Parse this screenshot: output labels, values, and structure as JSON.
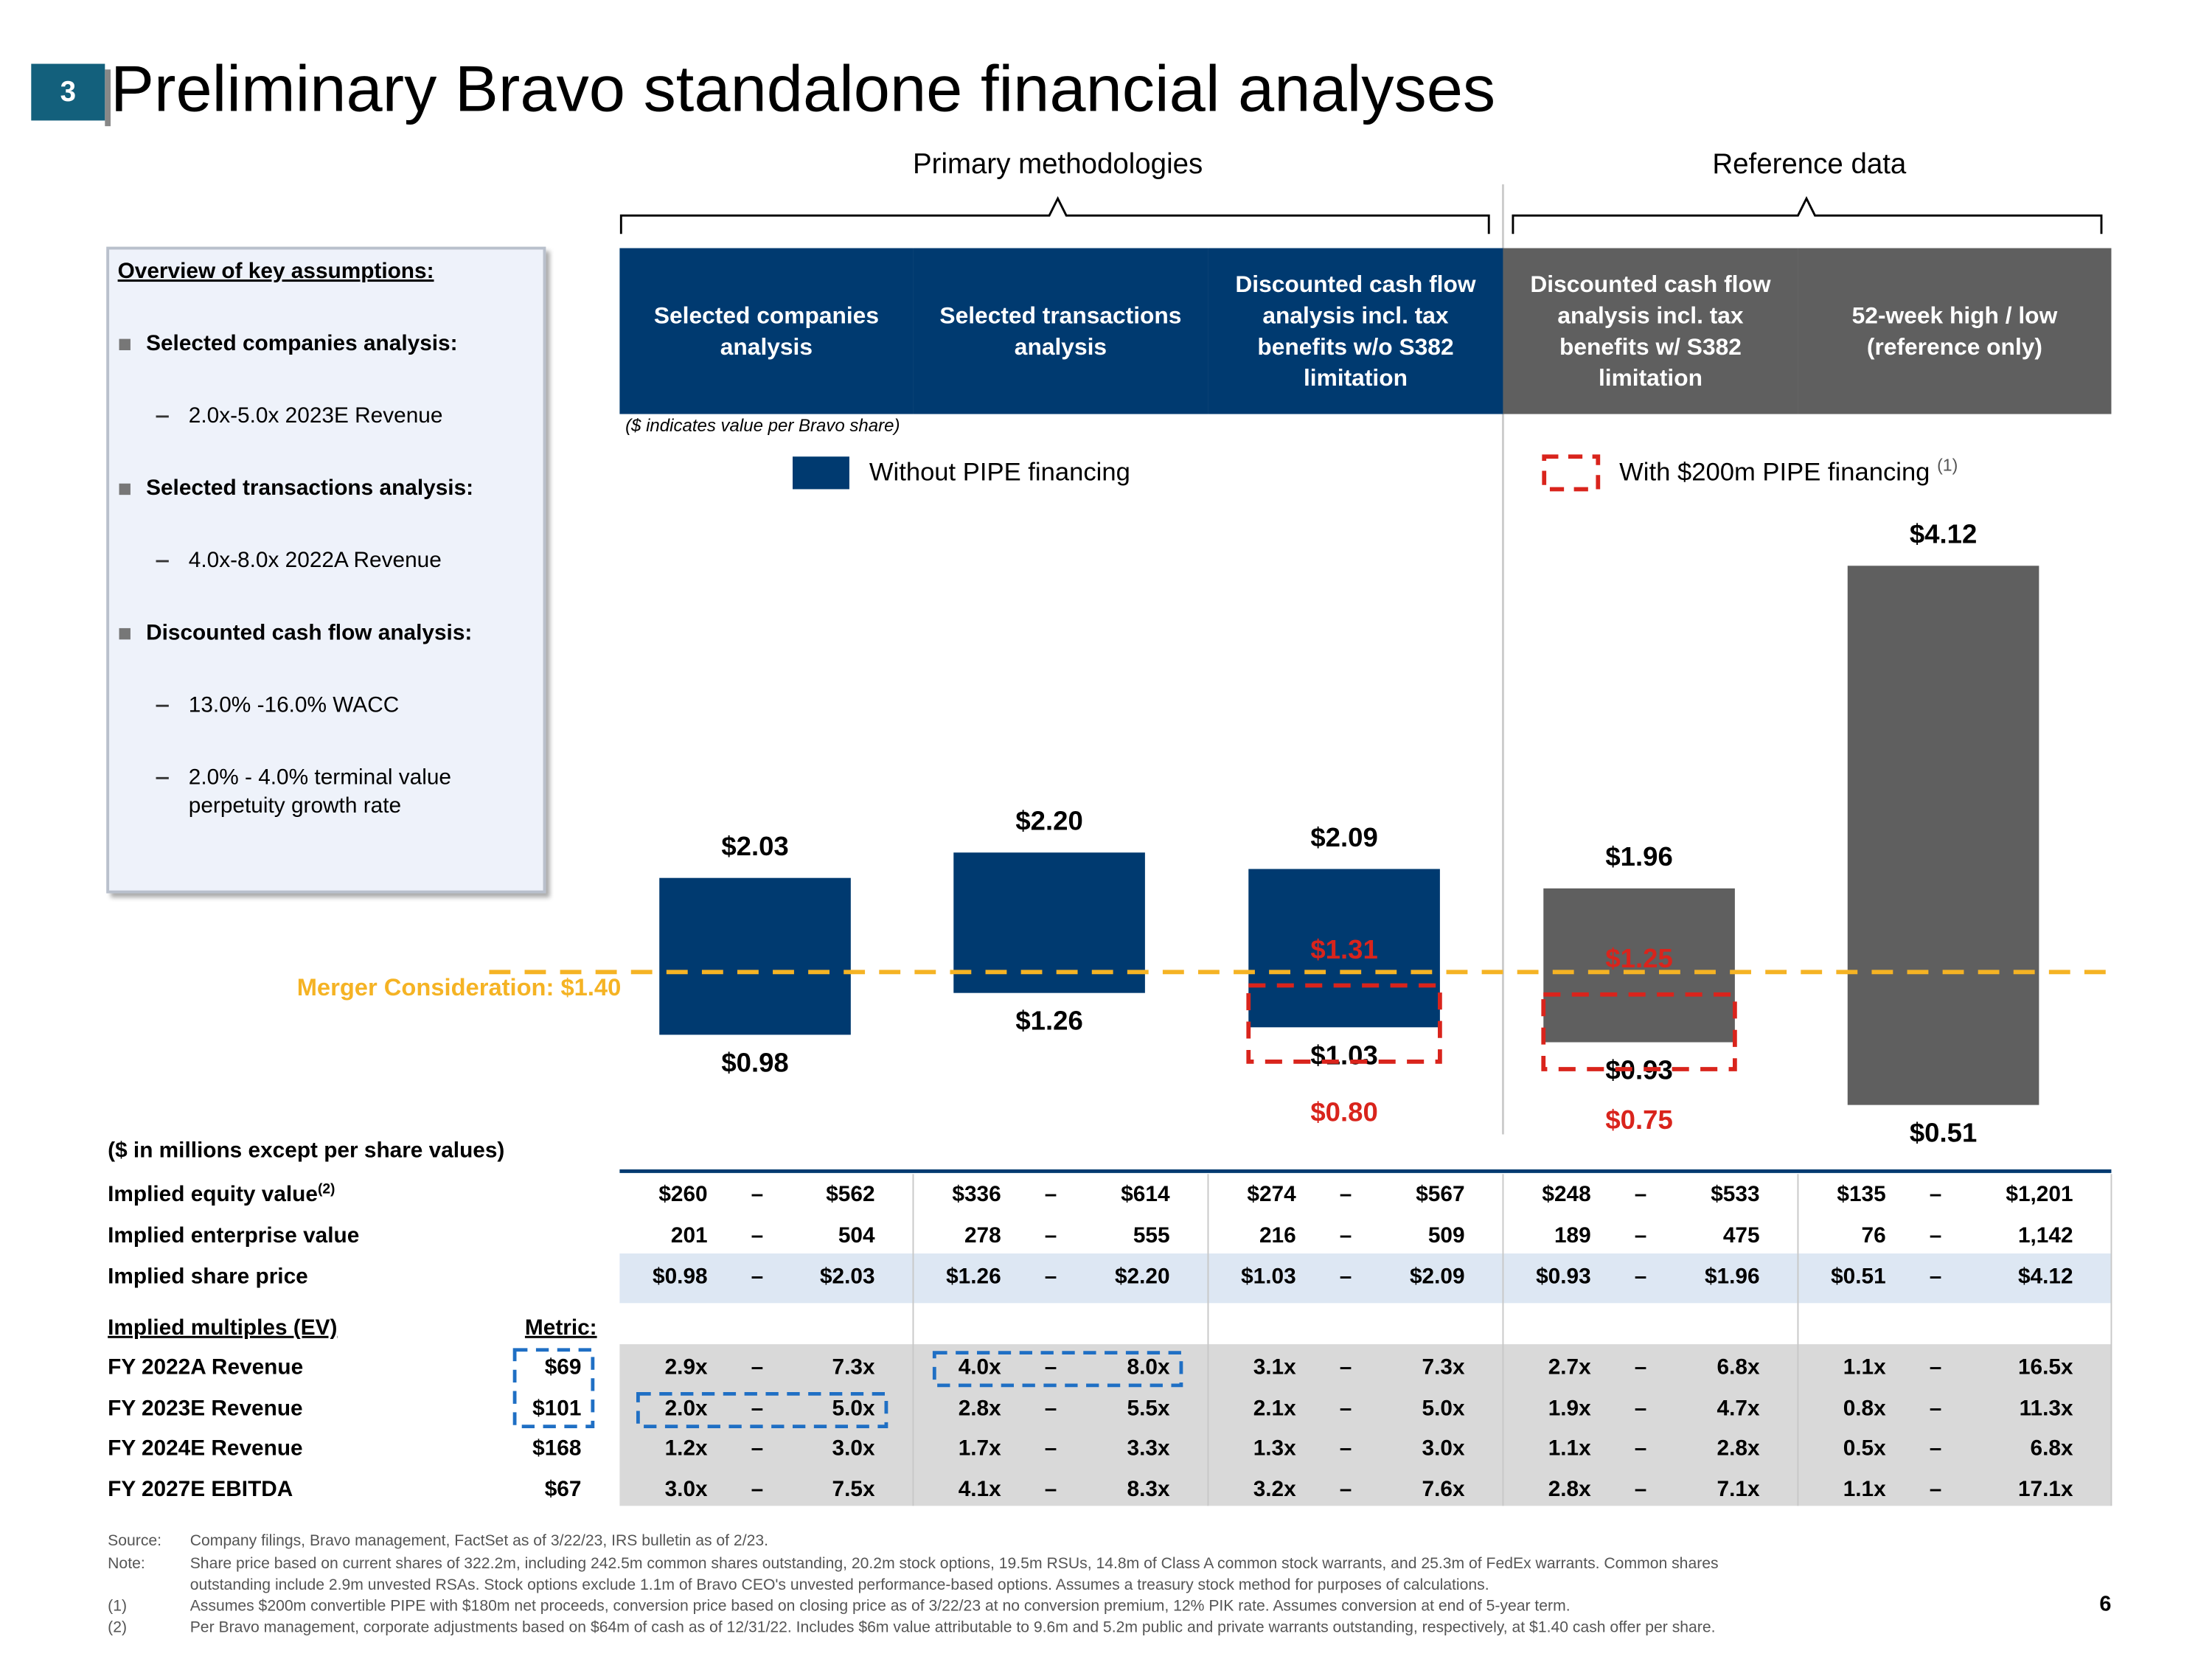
{
  "section_number": "3",
  "title": "Preliminary Bravo standalone financial analyses",
  "page_number": "6",
  "assumptions": {
    "heading": "Overview of key assumptions:",
    "items": [
      {
        "text": "Selected companies analysis:",
        "level": 1
      },
      {
        "text": "2.0x-5.0x 2023E Revenue",
        "level": 2
      },
      {
        "text": "Selected transactions analysis:",
        "level": 1
      },
      {
        "text": "4.0x-8.0x 2022A Revenue",
        "level": 2
      },
      {
        "text": "Discounted cash flow analysis:",
        "level": 1
      },
      {
        "text": "13.0% -16.0% WACC",
        "level": 2
      },
      {
        "text": "2.0% - 4.0% terminal value perpetuity growth rate",
        "level": 2
      }
    ]
  },
  "chart_data": {
    "type": "floating-bar",
    "group_labels": [
      "Primary methodologies",
      "Reference data"
    ],
    "categories": [
      "Selected companies analysis",
      "Selected transactions analysis",
      "Discounted cash flow analysis incl. tax benefits w/o S382 limitation",
      "Discounted cash flow analysis incl. tax benefits w/ S382 limitation",
      "52-week high / low (reference only)"
    ],
    "header_colors": [
      "#003a70",
      "#003a70",
      "#003a70",
      "#5f5f5f",
      "#5f5f5f"
    ],
    "bar_colors": [
      "#003a70",
      "#003a70",
      "#003a70",
      "#5f5f5f",
      "#5f5f5f"
    ],
    "note": "($ indicates value per Bravo share)",
    "series": [
      {
        "name": "Without PIPE financing",
        "color": "#003a70",
        "style": "solid",
        "low": [
          0.98,
          1.26,
          1.03,
          0.93,
          0.51
        ],
        "high": [
          2.03,
          2.2,
          2.09,
          1.96,
          4.12
        ],
        "low_labels": [
          "$0.98",
          "$1.26",
          "$1.03",
          "$0.93",
          "$0.51"
        ],
        "high_labels": [
          "$2.03",
          "$2.20",
          "$2.09",
          "$1.96",
          "$4.12"
        ]
      },
      {
        "name": "With $200m PIPE financing",
        "name_note": "(1)",
        "color": "#d9241c",
        "style": "dashed",
        "low": [
          null,
          null,
          0.8,
          0.75,
          null
        ],
        "high": [
          null,
          null,
          1.31,
          1.25,
          null
        ],
        "low_labels": [
          null,
          null,
          "$0.80",
          "$0.75",
          null
        ],
        "high_labels": [
          null,
          null,
          "$1.31",
          "$1.25",
          null
        ]
      }
    ],
    "reference_line": {
      "label": "Merger Consideration: $1.40",
      "value": 1.4,
      "color": "#f5b324"
    }
  },
  "table": {
    "units": "($ in millions except per share values)",
    "range_separator": "–",
    "rows": [
      {
        "label": "Implied equity value",
        "note": "(2)",
        "ranges": [
          [
            "$260",
            "$562"
          ],
          [
            "$336",
            "$614"
          ],
          [
            "$274",
            "$567"
          ],
          [
            "$248",
            "$533"
          ],
          [
            "$135",
            "$1,201"
          ]
        ]
      },
      {
        "label": "Implied enterprise value",
        "ranges": [
          [
            "201",
            "504"
          ],
          [
            "278",
            "555"
          ],
          [
            "216",
            "509"
          ],
          [
            "189",
            "475"
          ],
          [
            "76",
            "1,142"
          ]
        ]
      },
      {
        "label": "Implied share price",
        "ranges": [
          [
            "$0.98",
            "$2.03"
          ],
          [
            "$1.26",
            "$2.20"
          ],
          [
            "$1.03",
            "$2.09"
          ],
          [
            "$0.93",
            "$1.96"
          ],
          [
            "$0.51",
            "$4.12"
          ]
        ]
      }
    ],
    "multiples_heading": "Implied multiples (EV)",
    "metric_heading": "Metric:",
    "multiples": [
      {
        "label": "FY 2022A Revenue",
        "metric": "$69",
        "ranges": [
          [
            "2.9x",
            "7.3x"
          ],
          [
            "4.0x",
            "8.0x"
          ],
          [
            "3.1x",
            "7.3x"
          ],
          [
            "2.7x",
            "6.8x"
          ],
          [
            "1.1x",
            "16.5x"
          ]
        ]
      },
      {
        "label": "FY 2023E Revenue",
        "metric": "$101",
        "ranges": [
          [
            "2.0x",
            "5.0x"
          ],
          [
            "2.8x",
            "5.5x"
          ],
          [
            "2.1x",
            "5.0x"
          ],
          [
            "1.9x",
            "4.7x"
          ],
          [
            "0.8x",
            "11.3x"
          ]
        ]
      },
      {
        "label": "FY 2024E Revenue",
        "metric": "$168",
        "ranges": [
          [
            "1.2x",
            "3.0x"
          ],
          [
            "1.7x",
            "3.3x"
          ],
          [
            "1.3x",
            "3.0x"
          ],
          [
            "1.1x",
            "2.8x"
          ],
          [
            "0.5x",
            "6.8x"
          ]
        ]
      },
      {
        "label": "FY 2027E EBITDA",
        "metric": "$67",
        "ranges": [
          [
            "3.0x",
            "7.5x"
          ],
          [
            "4.1x",
            "8.3x"
          ],
          [
            "3.2x",
            "7.6x"
          ],
          [
            "2.8x",
            "7.1x"
          ],
          [
            "1.1x",
            "17.1x"
          ]
        ]
      }
    ]
  },
  "footnotes": [
    {
      "marker": "Source:",
      "text": "Company filings, Bravo management, FactSet as of 3/22/23, IRS bulletin as of 2/23."
    },
    {
      "marker": "Note:",
      "text": "Share price based on current shares of 322.2m, including 242.5m common shares outstanding, 20.2m stock options, 19.5m RSUs, 14.8m of Class A common stock warrants, and 25.3m of FedEx warrants. Common shares outstanding include 2.9m unvested RSAs. Stock options exclude 1.1m of Bravo CEO's unvested performance-based options. Assumes a treasury stock method for purposes of calculations."
    },
    {
      "marker": "(1)",
      "text": "Assumes $200m convertible PIPE with $180m net proceeds, conversion price based on closing price as of 3/22/23 at no conversion premium, 12% PIK rate. Assumes conversion at end of 5-year term."
    },
    {
      "marker": "(2)",
      "text": "Per Bravo management, corporate adjustments based on $64m of cash as of 12/31/22. Includes $6m value attributable to 9.6m and 5.2m public and private warrants outstanding, respectively, at $1.40 cash offer per share."
    }
  ]
}
